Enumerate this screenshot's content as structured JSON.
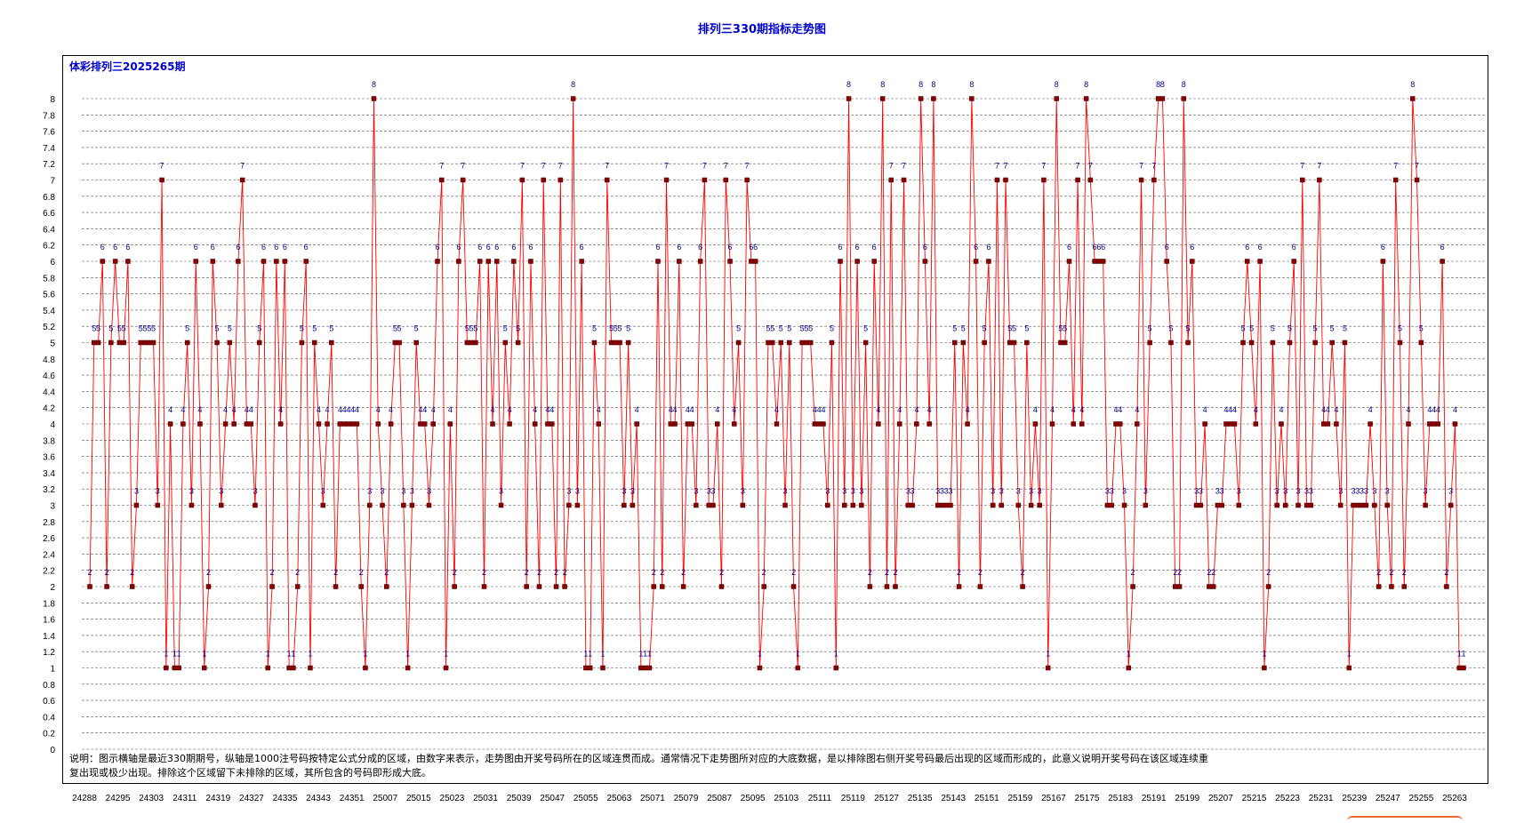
{
  "page": {
    "title": "排列三330期指标走势图",
    "subtitle": "体彩排列三2025265期",
    "note_line1": "说明：图示横轴是最近330期期号，纵轴是1000注号码按特定公式分成的区域，由数字来表示，走势图由开奖号码所在的区域连贯而成。通常情况下走势图所对应的大底数据，是以排除图右侧开奖号码最后出现的区域而形成的，此意义说明开奖号码在该区域连续重",
    "note_line2": "复出现或极少出现。排除这个区域留下未排除的区域，其所包含的号码即形成大底。"
  },
  "colors": {
    "title": "#0000cc",
    "line": "#ff0000",
    "marker": "#8b0000",
    "label": "#00008b",
    "grid": "#555555"
  },
  "chart_data": {
    "type": "line",
    "title": "排列三330期指标走势图",
    "subtitle": "体彩排列三2025265期",
    "xlabel": "",
    "ylabel": "",
    "ylim": [
      0,
      8
    ],
    "yticks": [
      0,
      0.2,
      0.4,
      0.6,
      0.8,
      1,
      1.2,
      1.4,
      1.6,
      1.8,
      2,
      2.2,
      2.4,
      2.6,
      2.8,
      3,
      3.2,
      3.4,
      3.6,
      3.8,
      4,
      4.2,
      4.4,
      4.6,
      4.8,
      5,
      5.2,
      5.4,
      5.6,
      5.8,
      6,
      6.2,
      6.4,
      6.6,
      6.8,
      7,
      7.2,
      7.4,
      7.6,
      7.8,
      8
    ],
    "grid": true,
    "x_tick_labels": [
      "24288",
      "24295",
      "24303",
      "24311",
      "24319",
      "24327",
      "24335",
      "24343",
      "24351",
      "25007",
      "25015",
      "25023",
      "25031",
      "25039",
      "25047",
      "25055",
      "25063",
      "25071",
      "25079",
      "25087",
      "25095",
      "25103",
      "25111",
      "25119",
      "25127",
      "25135",
      "25143",
      "25151",
      "25159",
      "25167",
      "25175",
      "25183",
      "25191",
      "25199",
      "25207",
      "25215",
      "25223",
      "25231",
      "25239",
      "25247",
      "25255",
      "25263"
    ],
    "series": [
      {
        "values": [
          2,
          5,
          5,
          6,
          2,
          5,
          6,
          5,
          5,
          6,
          2,
          3,
          5,
          5,
          5,
          5,
          3,
          7,
          1,
          4,
          1,
          1,
          4,
          5,
          3,
          6,
          4,
          1,
          2,
          6,
          5,
          3,
          4,
          5,
          4,
          6,
          7,
          4,
          4,
          3,
          5,
          6,
          1,
          2,
          6,
          4,
          6,
          1,
          1,
          2,
          5,
          6,
          1,
          5,
          4,
          3,
          4,
          5,
          2,
          4,
          4,
          4,
          4,
          4,
          2,
          1,
          3,
          8,
          4,
          3,
          2,
          4,
          5,
          5,
          3,
          1,
          3,
          5,
          4,
          4,
          3,
          4,
          6,
          7,
          1,
          4,
          2,
          6,
          7,
          5,
          5,
          5,
          6,
          2,
          6,
          4,
          6,
          3,
          5,
          4,
          6,
          5,
          7,
          2,
          6,
          4,
          2,
          7,
          4,
          4,
          2,
          7,
          2,
          3,
          8,
          3,
          6,
          1,
          1,
          5,
          4,
          1,
          7,
          5,
          5,
          5,
          3,
          5,
          3,
          4,
          1,
          1,
          1,
          2,
          6,
          2,
          7,
          4,
          4,
          6,
          2,
          4,
          4,
          3,
          6,
          7,
          3,
          3,
          4,
          2,
          7,
          6,
          4,
          5,
          3,
          7,
          6,
          6,
          1,
          2,
          5,
          5,
          4,
          5,
          3,
          5,
          2,
          1,
          5,
          5,
          5,
          4,
          4,
          4,
          3,
          5,
          1,
          6,
          3,
          8,
          3,
          6,
          3,
          5,
          2,
          6,
          4,
          8,
          2,
          7,
          2,
          4,
          7,
          3,
          3,
          4,
          8,
          6,
          4,
          8,
          3,
          3,
          3,
          3,
          5,
          2,
          5,
          4,
          8,
          6,
          2,
          5,
          6,
          3,
          7,
          3,
          7,
          5,
          5,
          3,
          2,
          5,
          3,
          4,
          3,
          7,
          1,
          4,
          8,
          5,
          5,
          6,
          4,
          7,
          4,
          8,
          7,
          6,
          6,
          6,
          3,
          3,
          4,
          4,
          3,
          1,
          2,
          4,
          7,
          3,
          5,
          7,
          8,
          8,
          6,
          5,
          2,
          2,
          8,
          5,
          6,
          3,
          3,
          4,
          2,
          2,
          3,
          3,
          4,
          4,
          4,
          3,
          5,
          6,
          5,
          4,
          6,
          1,
          2,
          5,
          3,
          4,
          3,
          5,
          6,
          3,
          7,
          3,
          3,
          5,
          7,
          4,
          4,
          5,
          4,
          3,
          5,
          1,
          3,
          3,
          3,
          3,
          4,
          3,
          2,
          6,
          3,
          2,
          7,
          5,
          2,
          4,
          8,
          7,
          5,
          3,
          4,
          4,
          4,
          6,
          2,
          3,
          4,
          1,
          1
        ]
      }
    ]
  }
}
